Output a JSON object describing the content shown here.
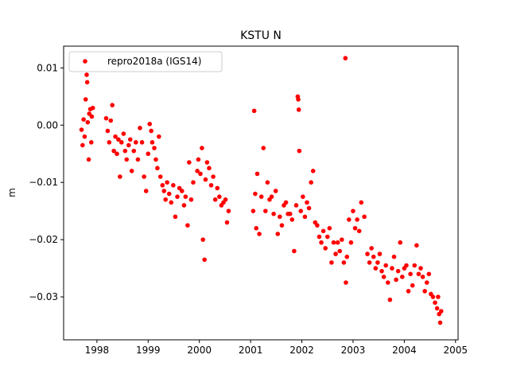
{
  "chart_data": {
    "type": "scatter",
    "title": "KSTU N",
    "xlabel": "",
    "ylabel": "m",
    "xlim": [
      1997.35,
      2005.05
    ],
    "ylim": [
      -0.0375,
      0.0138
    ],
    "x_ticks": [
      1998,
      1999,
      2000,
      2001,
      2002,
      2003,
      2004,
      2005
    ],
    "x_tick_labels": [
      "1998",
      "1999",
      "2000",
      "2001",
      "2002",
      "2003",
      "2004",
      "2005"
    ],
    "y_ticks": [
      0.01,
      0.0,
      -0.01,
      -0.02,
      -0.03
    ],
    "y_tick_labels": [
      "0.01",
      "0.00",
      "−0.01",
      "−0.02",
      "−0.03"
    ],
    "grid": false,
    "legend_position": "top-left",
    "color": "#ff0000",
    "series": [
      {
        "name": "repro2018a (IGS14)",
        "points": [
          [
            1997.7,
            -0.0008
          ],
          [
            1997.72,
            -0.0035
          ],
          [
            1997.74,
            0.001
          ],
          [
            1997.76,
            -0.002
          ],
          [
            1997.78,
            0.0045
          ],
          [
            1997.8,
            0.0088
          ],
          [
            1997.81,
            0.0075
          ],
          [
            1997.82,
            0.0005
          ],
          [
            1997.84,
            -0.006
          ],
          [
            1997.85,
            0.002
          ],
          [
            1997.87,
            0.0028
          ],
          [
            1997.89,
            -0.003
          ],
          [
            1997.9,
            0.0015
          ],
          [
            1997.92,
            0.003
          ],
          [
            1998.18,
            0.0012
          ],
          [
            1998.21,
            -0.001
          ],
          [
            1998.24,
            -0.003
          ],
          [
            1998.27,
            0.0008
          ],
          [
            1998.3,
            0.0035
          ],
          [
            1998.33,
            -0.0045
          ],
          [
            1998.36,
            -0.002
          ],
          [
            1998.39,
            -0.005
          ],
          [
            1998.42,
            -0.0025
          ],
          [
            1998.45,
            -0.009
          ],
          [
            1998.48,
            -0.003
          ],
          [
            1998.52,
            -0.0015
          ],
          [
            1998.55,
            -0.0045
          ],
          [
            1998.58,
            -0.006
          ],
          [
            1998.62,
            -0.0035
          ],
          [
            1998.65,
            -0.0025
          ],
          [
            1998.68,
            -0.008
          ],
          [
            1998.72,
            -0.0045
          ],
          [
            1998.76,
            -0.003
          ],
          [
            1998.8,
            -0.006
          ],
          [
            1998.84,
            -0.0005
          ],
          [
            1998.88,
            -0.003
          ],
          [
            1998.92,
            -0.009
          ],
          [
            1998.96,
            -0.0115
          ],
          [
            1999.0,
            -0.005
          ],
          [
            1999.03,
            0.0002
          ],
          [
            1999.06,
            -0.001
          ],
          [
            1999.08,
            -0.003
          ],
          [
            1999.12,
            -0.004
          ],
          [
            1999.15,
            -0.006
          ],
          [
            1999.18,
            -0.0075
          ],
          [
            1999.21,
            -0.002
          ],
          [
            1999.24,
            -0.009
          ],
          [
            1999.28,
            -0.0105
          ],
          [
            1999.31,
            -0.0115
          ],
          [
            1999.34,
            -0.013
          ],
          [
            1999.37,
            -0.01
          ],
          [
            1999.41,
            -0.012
          ],
          [
            1999.45,
            -0.0135
          ],
          [
            1999.49,
            -0.0105
          ],
          [
            1999.53,
            -0.016
          ],
          [
            1999.57,
            -0.0125
          ],
          [
            1999.61,
            -0.011
          ],
          [
            1999.66,
            -0.0115
          ],
          [
            1999.7,
            -0.014
          ],
          [
            1999.73,
            -0.0125
          ],
          [
            1999.77,
            -0.0175
          ],
          [
            1999.8,
            -0.0065
          ],
          [
            1999.84,
            -0.013
          ],
          [
            1999.88,
            -0.01
          ],
          [
            1999.96,
            -0.008
          ],
          [
            1999.98,
            -0.006
          ],
          [
            2000.02,
            -0.0085
          ],
          [
            2000.05,
            -0.004
          ],
          [
            2000.07,
            -0.02
          ],
          [
            2000.1,
            -0.0235
          ],
          [
            2000.12,
            -0.0095
          ],
          [
            2000.15,
            -0.0065
          ],
          [
            2000.19,
            -0.0075
          ],
          [
            2000.23,
            -0.0105
          ],
          [
            2000.27,
            -0.009
          ],
          [
            2000.31,
            -0.013
          ],
          [
            2000.35,
            -0.011
          ],
          [
            2000.39,
            -0.0125
          ],
          [
            2000.43,
            -0.014
          ],
          [
            2000.47,
            -0.0135
          ],
          [
            2000.51,
            -0.013
          ],
          [
            2000.54,
            -0.017
          ],
          [
            2000.57,
            -0.015
          ],
          [
            2001.05,
            -0.015
          ],
          [
            2001.07,
            0.0025
          ],
          [
            2001.09,
            -0.012
          ],
          [
            2001.11,
            -0.018
          ],
          [
            2001.13,
            -0.0085
          ],
          [
            2001.17,
            -0.019
          ],
          [
            2001.21,
            -0.0125
          ],
          [
            2001.25,
            -0.004
          ],
          [
            2001.29,
            -0.015
          ],
          [
            2001.33,
            -0.01
          ],
          [
            2001.37,
            -0.013
          ],
          [
            2001.41,
            -0.0125
          ],
          [
            2001.45,
            -0.0155
          ],
          [
            2001.49,
            -0.0115
          ],
          [
            2001.53,
            -0.019
          ],
          [
            2001.57,
            -0.016
          ],
          [
            2001.61,
            -0.0175
          ],
          [
            2001.65,
            -0.014
          ],
          [
            2001.69,
            -0.0135
          ],
          [
            2001.73,
            -0.0155
          ],
          [
            2001.77,
            -0.0155
          ],
          [
            2001.81,
            -0.0165
          ],
          [
            2001.85,
            -0.022
          ],
          [
            2001.89,
            -0.014
          ],
          [
            2001.92,
            0.005
          ],
          [
            2001.93,
            0.0045
          ],
          [
            2001.94,
            0.0027
          ],
          [
            2001.95,
            -0.0045
          ],
          [
            2001.98,
            -0.015
          ],
          [
            2002.02,
            -0.0125
          ],
          [
            2002.06,
            -0.016
          ],
          [
            2002.1,
            -0.0135
          ],
          [
            2002.14,
            -0.0145
          ],
          [
            2002.18,
            -0.01
          ],
          [
            2002.22,
            -0.008
          ],
          [
            2002.26,
            -0.017
          ],
          [
            2002.3,
            -0.0175
          ],
          [
            2002.34,
            -0.0195
          ],
          [
            2002.38,
            -0.0205
          ],
          [
            2002.42,
            -0.0185
          ],
          [
            2002.46,
            -0.0215
          ],
          [
            2002.5,
            -0.0195
          ],
          [
            2002.54,
            -0.018
          ],
          [
            2002.58,
            -0.024
          ],
          [
            2002.62,
            -0.0205
          ],
          [
            2002.66,
            -0.0225
          ],
          [
            2002.7,
            -0.0205
          ],
          [
            2002.74,
            -0.022
          ],
          [
            2002.78,
            -0.02
          ],
          [
            2002.82,
            -0.024
          ],
          [
            2002.85,
            0.0117
          ],
          [
            2002.86,
            -0.0275
          ],
          [
            2002.88,
            -0.023
          ],
          [
            2002.92,
            -0.0165
          ],
          [
            2002.96,
            -0.0205
          ],
          [
            2003.0,
            -0.015
          ],
          [
            2003.04,
            -0.018
          ],
          [
            2003.08,
            -0.0165
          ],
          [
            2003.12,
            -0.0185
          ],
          [
            2003.16,
            -0.0135
          ],
          [
            2003.22,
            -0.016
          ],
          [
            2003.28,
            -0.0225
          ],
          [
            2003.32,
            -0.024
          ],
          [
            2003.36,
            -0.0215
          ],
          [
            2003.4,
            -0.023
          ],
          [
            2003.44,
            -0.025
          ],
          [
            2003.48,
            -0.024
          ],
          [
            2003.52,
            -0.0225
          ],
          [
            2003.56,
            -0.0255
          ],
          [
            2003.6,
            -0.0265
          ],
          [
            2003.64,
            -0.0245
          ],
          [
            2003.68,
            -0.0275
          ],
          [
            2003.72,
            -0.0305
          ],
          [
            2003.76,
            -0.025
          ],
          [
            2003.8,
            -0.023
          ],
          [
            2003.84,
            -0.027
          ],
          [
            2003.88,
            -0.0255
          ],
          [
            2003.92,
            -0.0205
          ],
          [
            2003.96,
            -0.0265
          ],
          [
            2004.0,
            -0.025
          ],
          [
            2004.04,
            -0.0245
          ],
          [
            2004.08,
            -0.029
          ],
          [
            2004.12,
            -0.026
          ],
          [
            2004.16,
            -0.028
          ],
          [
            2004.2,
            -0.0245
          ],
          [
            2004.24,
            -0.021
          ],
          [
            2004.28,
            -0.026
          ],
          [
            2004.32,
            -0.025
          ],
          [
            2004.36,
            -0.0265
          ],
          [
            2004.4,
            -0.029
          ],
          [
            2004.44,
            -0.0275
          ],
          [
            2004.48,
            -0.026
          ],
          [
            2004.52,
            -0.0295
          ],
          [
            2004.56,
            -0.03
          ],
          [
            2004.6,
            -0.031
          ],
          [
            2004.64,
            -0.032
          ],
          [
            2004.66,
            -0.03
          ],
          [
            2004.68,
            -0.033
          ],
          [
            2004.7,
            -0.0345
          ],
          [
            2004.72,
            -0.0325
          ]
        ]
      }
    ]
  }
}
